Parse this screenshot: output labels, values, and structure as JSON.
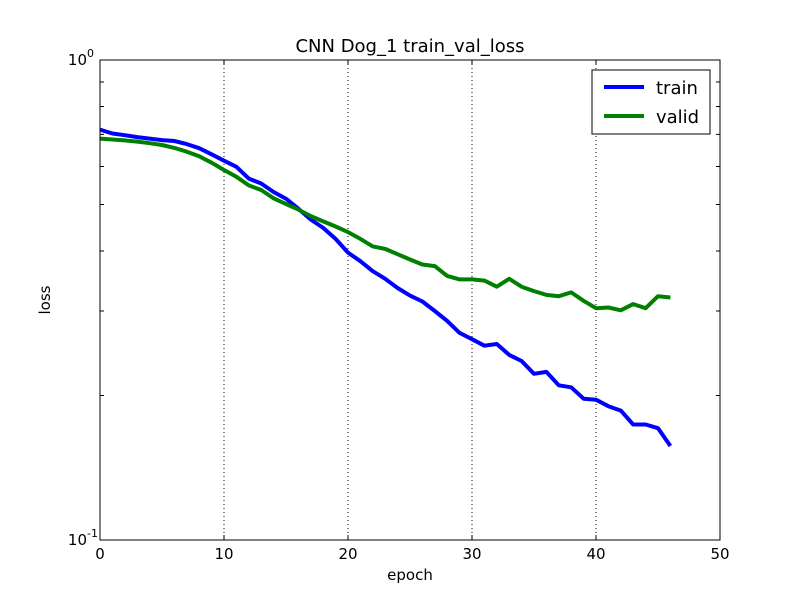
{
  "chart_data": {
    "type": "line",
    "title": "CNN Dog_1 train_val_loss",
    "xlabel": "epoch",
    "ylabel": "loss",
    "xlim": [
      0,
      50
    ],
    "ylim": [
      0.1,
      1.0
    ],
    "yscale": "log",
    "grid": "vertical-dotted",
    "legend_position": "top-right",
    "x_ticks": [
      "0",
      "10",
      "20",
      "30",
      "40",
      "50"
    ],
    "y_ticks": [
      {
        "base": "10",
        "exp": "-1"
      },
      {
        "base": "10",
        "exp": "0"
      }
    ],
    "series": [
      {
        "name": "train",
        "color": "#0000ff",
        "x": [
          0,
          1,
          2,
          3,
          4,
          5,
          6,
          7,
          8,
          9,
          10,
          11,
          12,
          13,
          14,
          15,
          16,
          17,
          18,
          19,
          20,
          21,
          22,
          23,
          24,
          25,
          26,
          27,
          28,
          29,
          30,
          31,
          32,
          33,
          34,
          35,
          36,
          37,
          38,
          39,
          40,
          41,
          42,
          43,
          44,
          45,
          46
        ],
        "values": [
          0.716,
          0.703,
          0.697,
          0.691,
          0.686,
          0.681,
          0.678,
          0.668,
          0.655,
          0.636,
          0.617,
          0.599,
          0.566,
          0.553,
          0.531,
          0.514,
          0.49,
          0.465,
          0.447,
          0.424,
          0.397,
          0.381,
          0.363,
          0.35,
          0.335,
          0.323,
          0.314,
          0.3,
          0.286,
          0.27,
          0.262,
          0.254,
          0.256,
          0.243,
          0.236,
          0.222,
          0.224,
          0.21,
          0.208,
          0.197,
          0.196,
          0.19,
          0.186,
          0.174,
          0.174,
          0.171,
          0.157
        ]
      },
      {
        "name": "valid",
        "color": "#008000",
        "x": [
          0,
          1,
          2,
          3,
          4,
          5,
          6,
          7,
          8,
          9,
          10,
          11,
          12,
          13,
          14,
          15,
          16,
          17,
          18,
          19,
          20,
          21,
          22,
          23,
          24,
          25,
          26,
          27,
          28,
          29,
          30,
          31,
          32,
          33,
          34,
          35,
          36,
          37,
          38,
          39,
          40,
          41,
          42,
          43,
          44,
          45,
          46
        ],
        "values": [
          0.686,
          0.683,
          0.68,
          0.676,
          0.671,
          0.665,
          0.656,
          0.644,
          0.63,
          0.611,
          0.59,
          0.571,
          0.548,
          0.536,
          0.515,
          0.501,
          0.488,
          0.473,
          0.461,
          0.45,
          0.438,
          0.424,
          0.409,
          0.404,
          0.394,
          0.384,
          0.375,
          0.372,
          0.355,
          0.349,
          0.349,
          0.347,
          0.337,
          0.35,
          0.337,
          0.33,
          0.324,
          0.322,
          0.328,
          0.315,
          0.304,
          0.305,
          0.301,
          0.31,
          0.304,
          0.322,
          0.32
        ]
      }
    ]
  }
}
